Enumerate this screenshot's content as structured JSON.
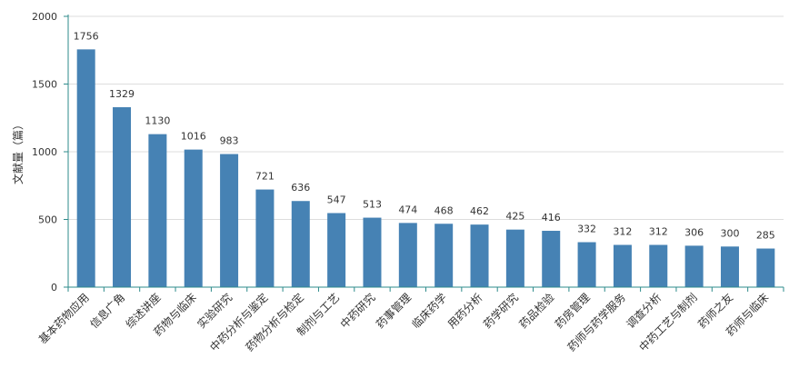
{
  "chart_data": {
    "type": "bar",
    "title": "",
    "xlabel": "",
    "ylabel": "文献量（篇）",
    "ylim": [
      0,
      2000
    ],
    "yticks": [
      0,
      500,
      1000,
      1500,
      2000
    ],
    "grid": true,
    "legend": "none",
    "bar_color": "#4682b4",
    "axis_color": "#2e8b8b",
    "categories": [
      "基本药物应用",
      "信息广角",
      "综述讲座",
      "药物与临床",
      "实验研究",
      "中药分析与鉴定",
      "药物分析与检定",
      "制剂与工艺",
      "中药研究",
      "药事管理",
      "临床药学",
      "用药分析",
      "药学研究",
      "药品检验",
      "药房管理",
      "药师与药学服务",
      "调查分析",
      "中药工艺与制剂",
      "药师之友",
      "药师与临床"
    ],
    "values": [
      1756,
      1329,
      1130,
      1016,
      983,
      721,
      636,
      547,
      513,
      474,
      468,
      462,
      425,
      416,
      332,
      312,
      312,
      306,
      300,
      285
    ]
  }
}
